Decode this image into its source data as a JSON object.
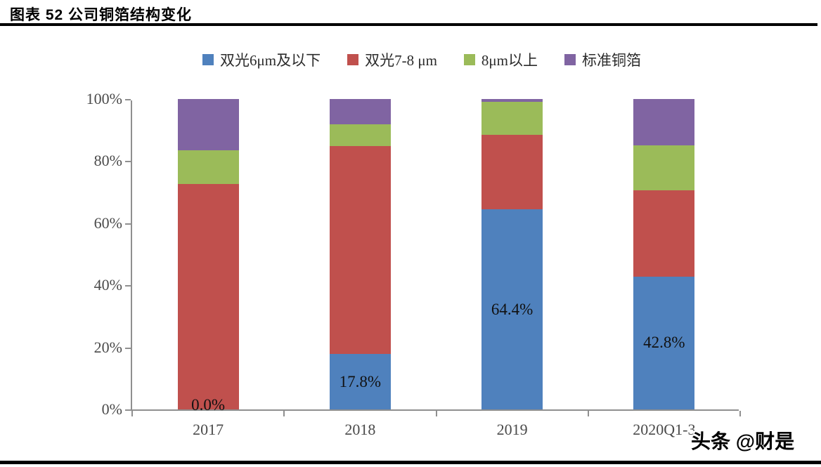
{
  "figure": {
    "title": "图表 52 公司铜箔结构变化"
  },
  "watermark": {
    "text": "头条 @财是"
  },
  "chart_data": {
    "type": "bar",
    "stacked": true,
    "percent_stacked": true,
    "title": "公司铜箔结构变化",
    "xlabel": "",
    "ylabel": "",
    "categories": [
      "2017",
      "2018",
      "2019",
      "2020Q1-3"
    ],
    "series": [
      {
        "name": "双光6μm及以下",
        "color": "#4F81BD",
        "values": [
          0.0,
          17.8,
          64.4,
          42.8
        ]
      },
      {
        "name": "双光7-8 μm",
        "color": "#C0504D",
        "values": [
          72.6,
          67.1,
          24.0,
          27.7
        ]
      },
      {
        "name": "8μm以上",
        "color": "#9BBB59",
        "values": [
          10.8,
          7.0,
          10.7,
          14.6
        ]
      },
      {
        "name": "标准铜箔",
        "color": "#8064A2",
        "values": [
          16.6,
          8.1,
          0.9,
          14.9
        ]
      }
    ],
    "data_labels": {
      "series": "双光6μm及以下",
      "labels": [
        "0.0%",
        "17.8%",
        "64.4%",
        "42.8%"
      ]
    },
    "y_ticks": [
      "0%",
      "20%",
      "40%",
      "60%",
      "80%",
      "100%"
    ],
    "ylim": [
      0,
      100
    ],
    "grid": false,
    "legend_position": "top",
    "axis_color": "#8f8f8f",
    "tick_label_color": "#4a4a4a"
  }
}
